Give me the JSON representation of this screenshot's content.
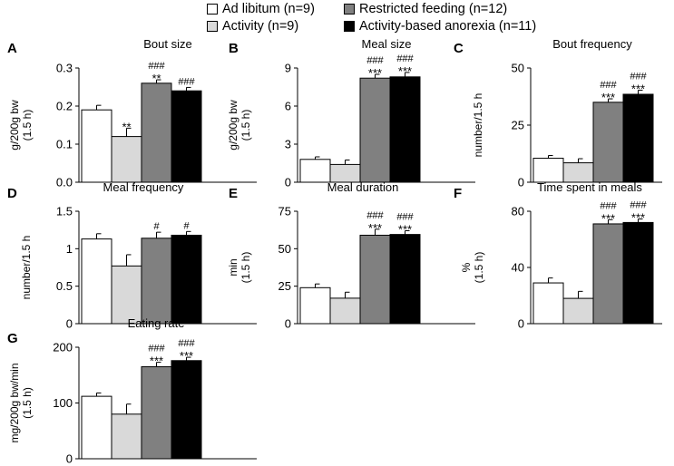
{
  "legend": [
    {
      "label": "Ad libitum (n=9)",
      "color": "#ffffff"
    },
    {
      "label": "Restricted feeding (n=12)",
      "color": "#808080"
    },
    {
      "label": "Activity (n=9)",
      "color": "#d9d9d9"
    },
    {
      "label": "Activity-based anorexia (n=11)",
      "color": "#000000"
    }
  ],
  "chart_data": [
    {
      "type": "bar",
      "panel": "A",
      "title": "Bout size",
      "ylabel": [
        "g/200g bw",
        "(1.5 h)"
      ],
      "ylim": [
        0,
        0.3
      ],
      "yticks": [
        "0.0",
        "0.1",
        "0.2",
        "0.3"
      ],
      "ytick_values": [
        0,
        0.1,
        0.2,
        0.3
      ],
      "categories": [
        "Ad libitum",
        "Activity",
        "Restricted feeding",
        "Activity-based anorexia"
      ],
      "values": [
        0.19,
        0.12,
        0.26,
        0.24
      ],
      "errors": [
        0.012,
        0.022,
        0.009,
        0.009
      ],
      "annotations": [
        [],
        [
          "**"
        ],
        [
          "###",
          "**"
        ],
        [
          "###"
        ]
      ]
    },
    {
      "type": "bar",
      "panel": "B",
      "title": "Meal size",
      "ylabel": [
        "g/200g bw",
        "(1.5 h)"
      ],
      "ylim": [
        0,
        9
      ],
      "yticks": [
        "0",
        "3",
        "6",
        "9"
      ],
      "ytick_values": [
        0,
        3,
        6,
        9
      ],
      "categories": [
        "Ad libitum",
        "Activity",
        "Restricted feeding",
        "Activity-based anorexia"
      ],
      "values": [
        1.8,
        1.4,
        8.2,
        8.3
      ],
      "errors": [
        0.2,
        0.35,
        0.3,
        0.35
      ],
      "annotations": [
        [],
        [],
        [
          "###",
          "***"
        ],
        [
          "###",
          "***"
        ]
      ]
    },
    {
      "type": "bar",
      "panel": "C",
      "title": "Bout frequency",
      "ylabel": [
        "number/1.5 h"
      ],
      "ylim": [
        0,
        50
      ],
      "yticks": [
        "0",
        "25",
        "50"
      ],
      "ytick_values": [
        0,
        25,
        50
      ],
      "categories": [
        "Ad libitum",
        "Activity",
        "Restricted feeding",
        "Activity-based anorexia"
      ],
      "values": [
        10.5,
        8.5,
        35,
        38.5
      ],
      "errors": [
        1.2,
        1.8,
        1.5,
        1.8
      ],
      "annotations": [
        [],
        [],
        [
          "###",
          "***"
        ],
        [
          "###",
          "***"
        ]
      ]
    },
    {
      "type": "bar",
      "panel": "D",
      "title": "Meal frequency",
      "ylabel": [
        "number/1.5 h"
      ],
      "ylim": [
        0,
        1.5
      ],
      "yticks": [
        "0",
        "0.5",
        "1",
        "1.5"
      ],
      "ytick_values": [
        0,
        0.5,
        1,
        1.5
      ],
      "categories": [
        "Ad libitum",
        "Activity",
        "Restricted feeding",
        "Activity-based anorexia"
      ],
      "values": [
        1.13,
        0.77,
        1.14,
        1.18
      ],
      "errors": [
        0.07,
        0.15,
        0.08,
        0.05
      ],
      "annotations": [
        [],
        [],
        [
          "#"
        ],
        [
          "#"
        ]
      ]
    },
    {
      "type": "bar",
      "panel": "E",
      "title": "Meal duration",
      "ylabel": [
        "min",
        "(1.5 h)"
      ],
      "ylim": [
        0,
        75
      ],
      "yticks": [
        "0",
        "25",
        "50",
        "75"
      ],
      "ytick_values": [
        0,
        25,
        50,
        75
      ],
      "categories": [
        "Ad libitum",
        "Activity",
        "Restricted feeding",
        "Activity-based anorexia"
      ],
      "values": [
        24,
        17,
        59,
        59.5
      ],
      "errors": [
        2.5,
        4,
        4,
        2.5
      ],
      "annotations": [
        [],
        [],
        [
          "###",
          "***"
        ],
        [
          "###",
          "***"
        ]
      ]
    },
    {
      "type": "bar",
      "panel": "F",
      "title": "Time spent in meals",
      "ylabel": [
        "%",
        "(1.5 h)"
      ],
      "ylim": [
        0,
        80
      ],
      "yticks": [
        "0",
        "40",
        "80"
      ],
      "ytick_values": [
        0,
        40,
        80
      ],
      "categories": [
        "Ad libitum",
        "Activity",
        "Restricted feeding",
        "Activity-based anorexia"
      ],
      "values": [
        29,
        18,
        71,
        72
      ],
      "errors": [
        3.5,
        5,
        3,
        2.5
      ],
      "annotations": [
        [],
        [],
        [
          "###",
          "***"
        ],
        [
          "###",
          "***"
        ]
      ]
    },
    {
      "type": "bar",
      "panel": "G",
      "title": "Eating rate",
      "ylabel": [
        "mg/200g bw/min",
        "(1.5 h)"
      ],
      "ylim": [
        0,
        200
      ],
      "yticks": [
        "0",
        "100",
        "200"
      ],
      "ytick_values": [
        0,
        100,
        200
      ],
      "categories": [
        "Ad libitum",
        "Activity",
        "Restricted feeding",
        "Activity-based anorexia"
      ],
      "values": [
        112,
        80,
        165,
        176
      ],
      "errors": [
        6,
        18,
        8,
        6
      ],
      "annotations": [
        [],
        [],
        [
          "###",
          "***"
        ],
        [
          "###",
          "***"
        ]
      ]
    }
  ]
}
